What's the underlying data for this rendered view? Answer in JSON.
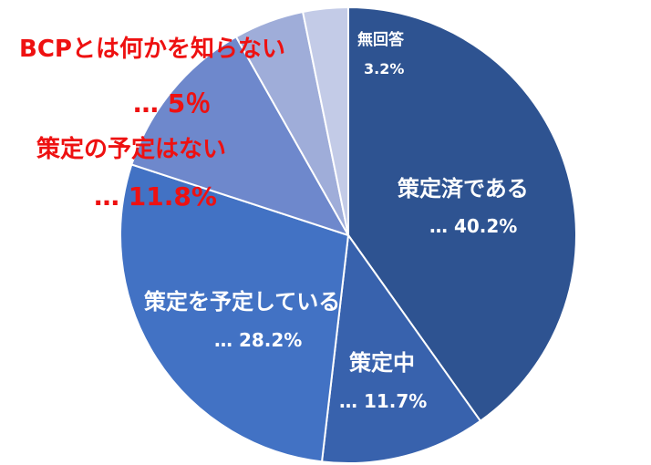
{
  "chart_data": {
    "type": "pie",
    "title": "",
    "start_angle_deg": 0,
    "direction": "clockwise",
    "slices": [
      {
        "name": "策定済である",
        "value": 40.2,
        "value_label": "… 40.2%",
        "color": "#2e5391"
      },
      {
        "name": "策定中",
        "value": 11.7,
        "value_label": "… 11.7%",
        "color": "#3862ad"
      },
      {
        "name": "策定を予定している",
        "value": 28.2,
        "value_label": "… 28.2%",
        "color": "#4272c4"
      },
      {
        "name": "策定の予定はない",
        "value": 11.8,
        "value_label": "… 11.8%",
        "color": "#6e88cc"
      },
      {
        "name": "BCPとは何かを知らない",
        "value": 5.0,
        "value_label": "… 5％",
        "color": "#9fadd9"
      },
      {
        "name": "無回答",
        "value": 3.2,
        "value_label": "3.2%",
        "color": "#c3cbe7"
      }
    ],
    "label_colors": {
      "inside": "#ffffff",
      "outside": "#ee1111"
    }
  }
}
